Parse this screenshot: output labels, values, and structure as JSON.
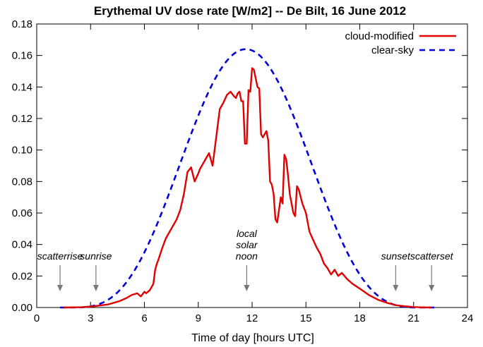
{
  "chart_data": {
    "type": "line",
    "title": "Erythemal UV dose rate  [W/m2]  --  De Bilt, 16 June 2012",
    "xlabel": "Time of day  [hours UTC]",
    "ylabel": "",
    "xlim": [
      0,
      24
    ],
    "ylim": [
      0,
      0.18
    ],
    "xticks": [
      0,
      3,
      6,
      9,
      12,
      15,
      18,
      21,
      24
    ],
    "yticks": [
      0.0,
      0.02,
      0.04,
      0.06,
      0.08,
      0.1,
      0.12,
      0.14,
      0.16,
      0.18
    ],
    "ytick_labels": [
      "0.00",
      "0.02",
      "0.04",
      "0.06",
      "0.08",
      "0.10",
      "0.12",
      "0.14",
      "0.16",
      "0.18"
    ],
    "grid": false,
    "legend_position": "top-right",
    "series": [
      {
        "name": "cloud-modified",
        "color": "#e00000",
        "style": "solid",
        "x": [
          1.5,
          2.5,
          3.2,
          4.0,
          4.6,
          5.0,
          5.3,
          5.6,
          5.8,
          6.0,
          6.1,
          6.3,
          6.5,
          6.6,
          6.7,
          6.8,
          7.0,
          7.2,
          7.4,
          7.6,
          7.8,
          8.0,
          8.2,
          8.4,
          8.6,
          8.8,
          9.0,
          9.1,
          9.3,
          9.6,
          9.8,
          10.0,
          10.2,
          10.4,
          10.6,
          10.8,
          11.0,
          11.1,
          11.2,
          11.3,
          11.4,
          11.5,
          11.6,
          11.7,
          11.8,
          11.9,
          12.0,
          12.1,
          12.3,
          12.4,
          12.5,
          12.6,
          12.7,
          12.8,
          12.9,
          13.0,
          13.1,
          13.2,
          13.3,
          13.4,
          13.6,
          13.7,
          13.8,
          13.9,
          14.0,
          14.1,
          14.2,
          14.3,
          14.4,
          14.5,
          14.6,
          14.8,
          15.0,
          15.2,
          15.4,
          15.6,
          15.8,
          16.0,
          16.2,
          16.4,
          16.6,
          16.8,
          17.0,
          17.3,
          17.6,
          18.0,
          18.5,
          19.0,
          19.5,
          20.0,
          20.5,
          21.0,
          21.5,
          22.0
        ],
        "y": [
          0.0,
          0.0002,
          0.0008,
          0.002,
          0.004,
          0.006,
          0.008,
          0.009,
          0.007,
          0.01,
          0.009,
          0.011,
          0.015,
          0.024,
          0.028,
          0.031,
          0.038,
          0.044,
          0.048,
          0.052,
          0.056,
          0.062,
          0.072,
          0.086,
          0.089,
          0.08,
          0.085,
          0.088,
          0.092,
          0.098,
          0.09,
          0.108,
          0.126,
          0.13,
          0.135,
          0.137,
          0.134,
          0.133,
          0.136,
          0.137,
          0.131,
          0.131,
          0.104,
          0.104,
          0.138,
          0.137,
          0.152,
          0.151,
          0.14,
          0.139,
          0.11,
          0.108,
          0.11,
          0.112,
          0.106,
          0.08,
          0.078,
          0.072,
          0.056,
          0.054,
          0.07,
          0.066,
          0.097,
          0.094,
          0.084,
          0.072,
          0.066,
          0.06,
          0.058,
          0.077,
          0.075,
          0.066,
          0.06,
          0.048,
          0.043,
          0.038,
          0.034,
          0.028,
          0.025,
          0.021,
          0.024,
          0.02,
          0.022,
          0.018,
          0.015,
          0.012,
          0.008,
          0.005,
          0.003,
          0.0015,
          0.0008,
          0.0003,
          0.0001,
          0.0
        ]
      },
      {
        "name": "clear-sky",
        "color": "#0000e0",
        "style": "dashed",
        "peak_time": 11.65,
        "peak_value": 0.164
      }
    ],
    "annotations": [
      {
        "label_lines": [
          "scatterrise"
        ],
        "x": 1.3
      },
      {
        "label_lines": [
          "sunrise"
        ],
        "x": 3.3
      },
      {
        "label_lines": [
          "local",
          "solar",
          "noon"
        ],
        "x": 11.7
      },
      {
        "label_lines": [
          "sunset"
        ],
        "x": 20.0
      },
      {
        "label_lines": [
          "scatterset"
        ],
        "x": 22.0
      }
    ]
  }
}
